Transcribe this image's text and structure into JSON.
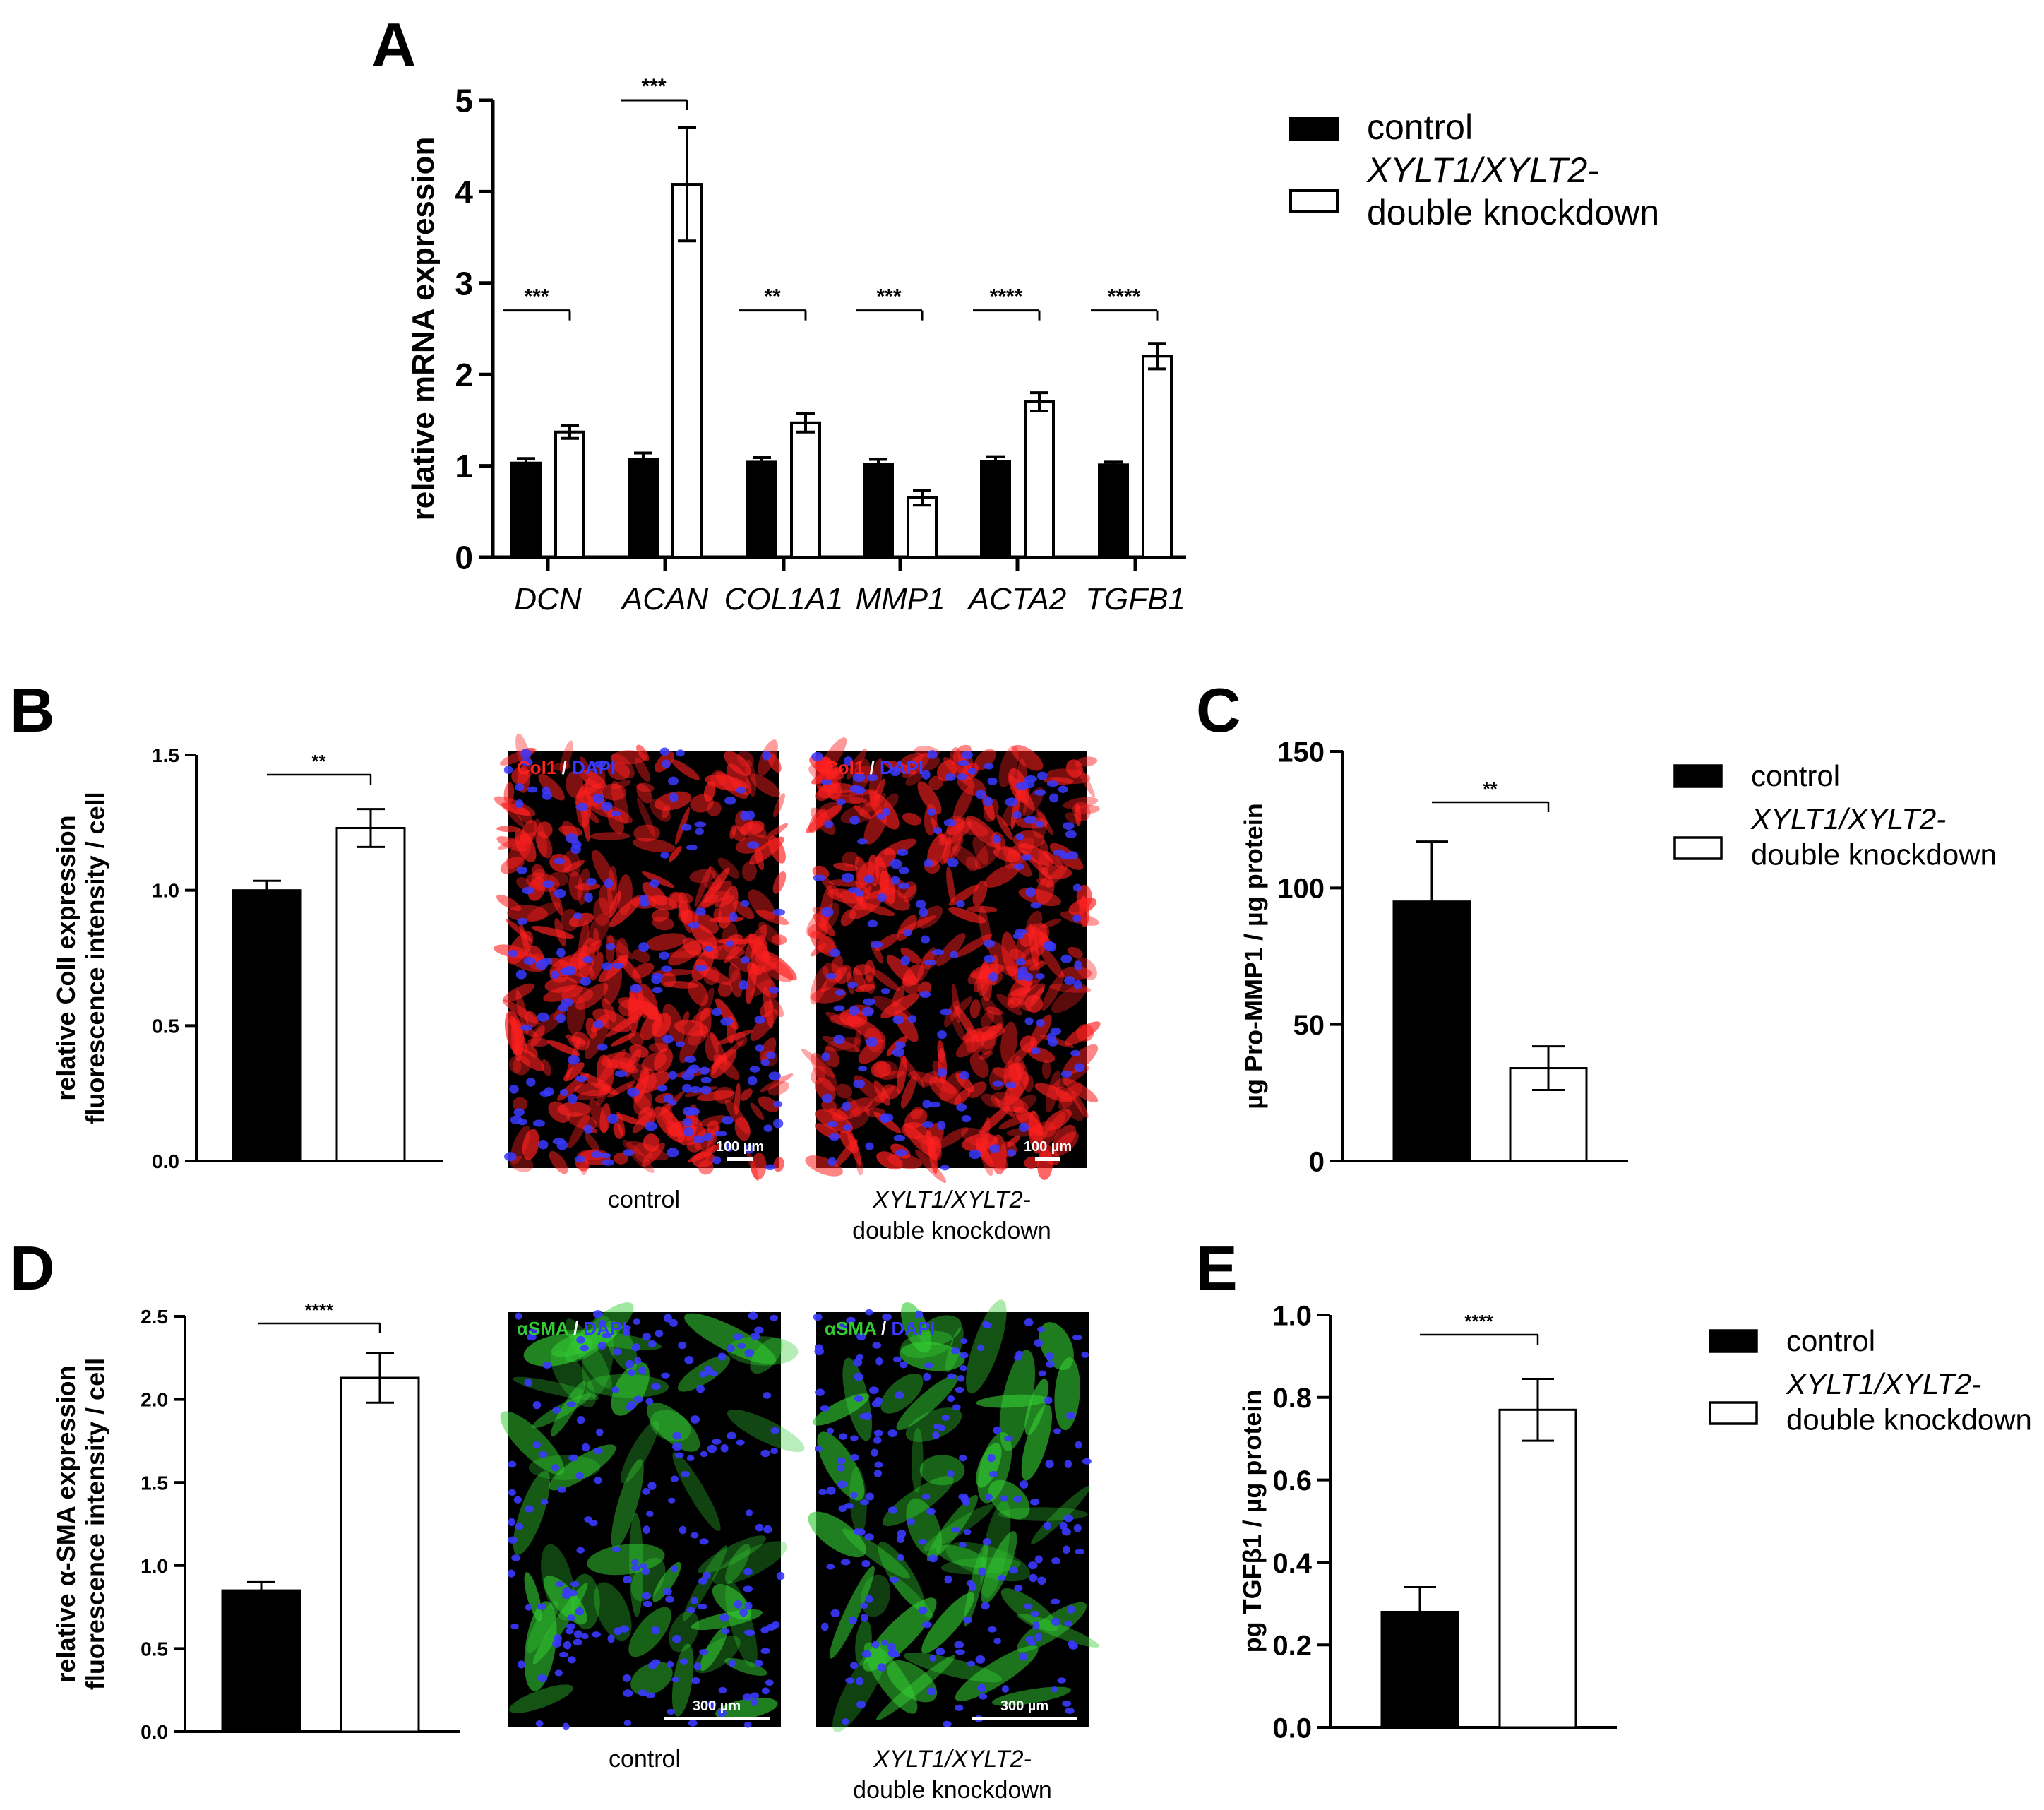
{
  "colors": {
    "control": "#000000",
    "knockdown": "#ffffff",
    "axis": "#000000",
    "col1_red": "#ff2020",
    "dapi_blue": "#3a3aff",
    "asma_green": "#33cc33"
  },
  "chart_data": [
    {
      "panel": "A",
      "type": "bar",
      "ylabel": "relative mRNA expression",
      "ylim": [
        0,
        5
      ],
      "yticks": [
        "0",
        "1",
        "2",
        "3",
        "4",
        "5"
      ],
      "categories": [
        "DCN",
        "ACAN",
        "COL1A1",
        "MMP1",
        "ACTA2",
        "TGFB1"
      ],
      "series": [
        {
          "name": "control",
          "values": [
            1.03,
            1.07,
            1.04,
            1.02,
            1.05,
            1.01
          ],
          "errors": [
            0.05,
            0.07,
            0.05,
            0.05,
            0.05,
            0.03
          ]
        },
        {
          "name": "XYLT1/XYLT2-double knockdown",
          "values": [
            1.37,
            4.08,
            1.47,
            0.65,
            1.7,
            2.2
          ],
          "errors": [
            0.07,
            0.62,
            0.1,
            0.08,
            0.1,
            0.14
          ]
        }
      ],
      "significance": [
        "***",
        "***",
        "**",
        "***",
        "****",
        "****"
      ],
      "legend": {
        "position": "right",
        "entries": [
          "control",
          "XYLT1/XYLT2-",
          "double knockdown"
        ]
      }
    },
    {
      "panel": "B",
      "type": "bar",
      "ylabel": [
        "relative ColI expression",
        "fluorescence intensity / cell"
      ],
      "ylim": [
        0,
        1.5
      ],
      "yticks": [
        "0.0",
        "0.5",
        "1.0",
        "1.5"
      ],
      "categories": [
        "control",
        "XYLT1/XYLT2-double knockdown"
      ],
      "values": [
        1.0,
        1.23
      ],
      "errors": [
        0.035,
        0.07
      ],
      "significance": "**",
      "images": [
        {
          "stain_a": "Col1",
          "sep": " / ",
          "stain_b": "DAPI",
          "scale": "100 µm",
          "caption": [
            "control"
          ]
        },
        {
          "stain_a": "Col1",
          "sep": " / ",
          "stain_b": "DAPI",
          "scale": "100 µm",
          "caption": [
            "XYLT1/XYLT2-",
            "double knockdown"
          ]
        }
      ]
    },
    {
      "panel": "C",
      "type": "bar",
      "ylabel": "µg Pro-MMP1 / µg protein",
      "ylim": [
        0,
        150
      ],
      "yticks": [
        "0",
        "50",
        "100",
        "150"
      ],
      "categories": [
        "control",
        "XYLT1/XYLT2-double knockdown"
      ],
      "values": [
        95,
        34
      ],
      "errors": [
        22,
        8
      ],
      "significance": "**",
      "legend": {
        "position": "right",
        "entries": [
          "control",
          "XYLT1/XYLT2-",
          "double knockdown"
        ]
      }
    },
    {
      "panel": "D",
      "type": "bar",
      "ylabel": [
        "relative α-SMA expression",
        "fluorescence intensity / cell"
      ],
      "ylim": [
        0,
        2.5
      ],
      "yticks": [
        "0.0",
        "0.5",
        "1.0",
        "1.5",
        "2.0",
        "2.5"
      ],
      "categories": [
        "control",
        "XYLT1/XYLT2-double knockdown"
      ],
      "values": [
        0.85,
        2.13
      ],
      "errors": [
        0.05,
        0.15
      ],
      "significance": "****",
      "images": [
        {
          "stain_a": "αSMA",
          "sep": " / ",
          "stain_b": "DAPI",
          "scale": "300 µm",
          "caption": [
            "control"
          ]
        },
        {
          "stain_a": "αSMA",
          "sep": " / ",
          "stain_b": "DAPI",
          "scale": "300 µm",
          "caption": [
            "XYLT1/XYLT2-",
            "double knockdown"
          ]
        }
      ]
    },
    {
      "panel": "E",
      "type": "bar",
      "ylabel": "pg TGFβ1 / µg protein",
      "ylim": [
        0,
        1.0
      ],
      "yticks": [
        "0.0",
        "0.2",
        "0.4",
        "0.6",
        "0.8",
        "1.0"
      ],
      "categories": [
        "control",
        "XYLT1/XYLT2-double knockdown"
      ],
      "values": [
        0.28,
        0.77
      ],
      "errors": [
        0.06,
        0.075
      ],
      "significance": "****",
      "legend": {
        "position": "right",
        "entries": [
          "control",
          "XYLT1/XYLT2-",
          "double knockdown"
        ]
      }
    }
  ]
}
